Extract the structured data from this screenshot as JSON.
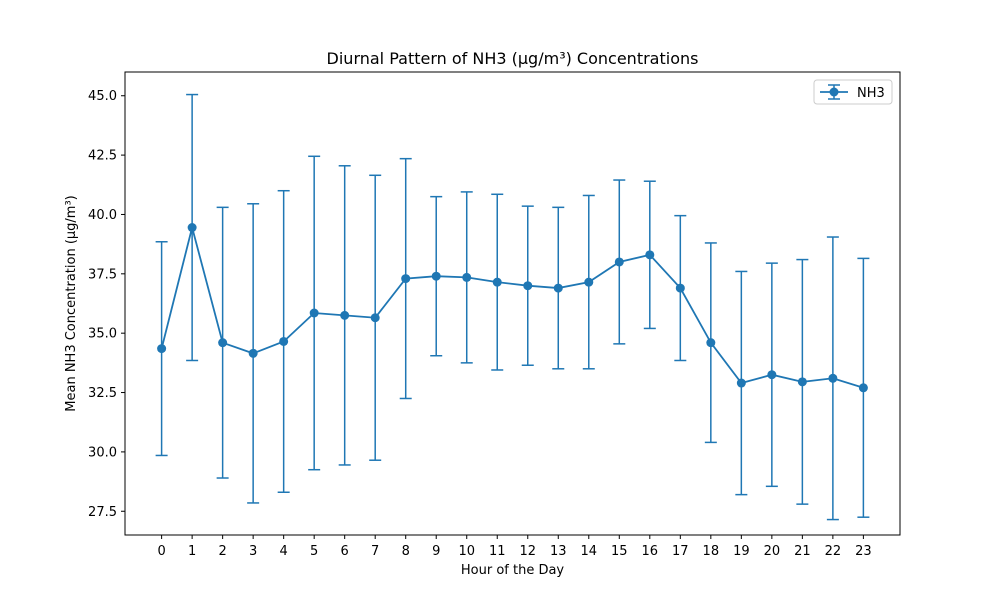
{
  "chart_data": {
    "type": "line",
    "title": "Diurnal Pattern of NH3 (µg/m³) Concentrations",
    "xlabel": "Hour of the Day",
    "ylabel": "Mean NH3 Concentration (µg/m³)",
    "x": [
      0,
      1,
      2,
      3,
      4,
      5,
      6,
      7,
      8,
      9,
      10,
      11,
      12,
      13,
      14,
      15,
      16,
      17,
      18,
      19,
      20,
      21,
      22,
      23
    ],
    "ylim": [
      26.5,
      46.0
    ],
    "yticks": [
      27.5,
      30.0,
      32.5,
      35.0,
      37.5,
      40.0,
      42.5,
      45.0
    ],
    "ytick_labels": [
      "27.5",
      "30.0",
      "32.5",
      "35.0",
      "37.5",
      "40.0",
      "42.5",
      "45.0"
    ],
    "xtick_labels": [
      "0",
      "1",
      "2",
      "3",
      "4",
      "5",
      "6",
      "7",
      "8",
      "9",
      "10",
      "11",
      "12",
      "13",
      "14",
      "15",
      "16",
      "17",
      "18",
      "19",
      "20",
      "21",
      "22",
      "23"
    ],
    "grid": false,
    "legend_position": "upper right",
    "series": [
      {
        "name": "NH3",
        "color": "#1f77b4",
        "values": [
          34.35,
          39.45,
          34.6,
          34.15,
          34.65,
          35.85,
          35.75,
          35.65,
          37.3,
          37.4,
          37.35,
          37.15,
          37.0,
          36.9,
          37.15,
          38.0,
          38.3,
          36.9,
          34.6,
          32.9,
          33.25,
          32.95,
          33.1,
          32.7
        ],
        "error": [
          4.5,
          5.6,
          5.7,
          6.3,
          6.35,
          6.6,
          6.3,
          6.0,
          5.05,
          3.35,
          3.6,
          3.7,
          3.35,
          3.4,
          3.65,
          3.45,
          3.1,
          3.05,
          4.2,
          4.7,
          4.7,
          5.15,
          5.95,
          5.45
        ]
      }
    ]
  }
}
